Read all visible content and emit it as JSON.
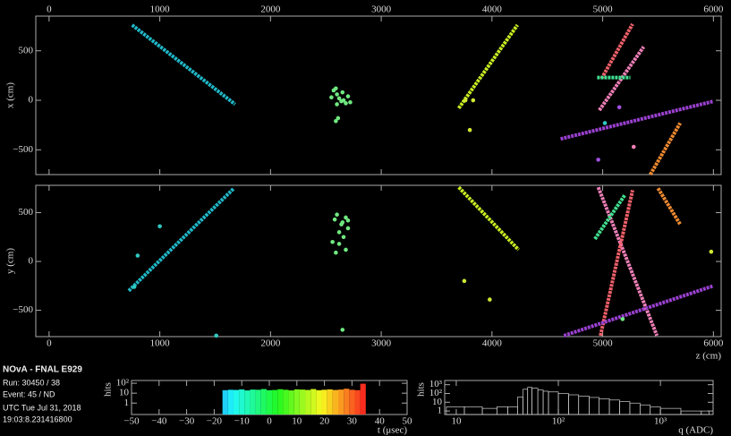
{
  "chart_data": [
    {
      "type": "event-view",
      "ylabel": "x (cm)",
      "xlim": [
        -120,
        6070
      ],
      "ylim": [
        -750,
        850
      ],
      "xticks": [
        0,
        1000,
        2000,
        3000,
        4000,
        5000,
        6000
      ],
      "yticks": [
        {
          "value": -500,
          "label": "−500"
        },
        0,
        500
      ],
      "tracks": [
        {
          "color": "#1fb8c8",
          "x": [
            750,
            1680
          ],
          "values": [
            760,
            -40
          ]
        },
        {
          "color": "#c8ee22",
          "x": [
            3700,
            4230
          ],
          "values": [
            -80,
            760
          ]
        },
        {
          "color": "#f0606a",
          "x": [
            4990,
            5270
          ],
          "values": [
            220,
            770
          ]
        },
        {
          "color": "#f080b8",
          "x": [
            4970,
            5370
          ],
          "values": [
            -100,
            540
          ]
        },
        {
          "color": "#40e090",
          "x": [
            4950,
            5250
          ],
          "values": [
            230,
            230
          ]
        },
        {
          "color": "#9a40d0",
          "x": [
            4620,
            6000
          ],
          "values": [
            -390,
            -10
          ]
        },
        {
          "color": "#f08a30",
          "x": [
            5430,
            5700
          ],
          "values": [
            -750,
            -230
          ]
        }
      ],
      "hits": [
        {
          "color": "#70e880",
          "x": [
            2570,
            2600,
            2620,
            2650,
            2680,
            2700,
            2720,
            2600,
            2550,
            2640,
            2590,
            2660,
            2610,
            2590
          ],
          "values": [
            100,
            60,
            20,
            80,
            -30,
            40,
            -20,
            -40,
            30,
            -10,
            120,
            0,
            -180,
            -210
          ]
        },
        {
          "color": "#d0e830",
          "x": [
            3760,
            3830,
            3800
          ],
          "values": [
            0,
            0,
            -300
          ]
        },
        {
          "color": "#a050e0",
          "x": [
            4960,
            5150
          ],
          "values": [
            -600,
            -70
          ]
        },
        {
          "color": "#f080b8",
          "x": [
            5280
          ],
          "values": [
            -470
          ]
        },
        {
          "color": "#30c8c0",
          "x": [
            5020
          ],
          "values": [
            -230
          ]
        }
      ]
    },
    {
      "type": "event-view",
      "ylabel": "y (cm)",
      "xlabel": "z (cm)",
      "xlim": [
        -120,
        6070
      ],
      "ylim": [
        -770,
        780
      ],
      "xticks": [
        0,
        1000,
        2000,
        3000,
        4000,
        5000,
        6000
      ],
      "yticks": [
        {
          "value": -500,
          "label": "−500"
        },
        0,
        500
      ],
      "tracks": [
        {
          "color": "#1fb8c8",
          "x": [
            720,
            1670
          ],
          "values": [
            -300,
            750
          ]
        },
        {
          "color": "#c8ee22",
          "x": [
            3700,
            4240
          ],
          "values": [
            760,
            120
          ]
        },
        {
          "color": "#f080b8",
          "x": [
            4960,
            5490
          ],
          "values": [
            760,
            -760
          ]
        },
        {
          "color": "#f0606a",
          "x": [
            4980,
            5270
          ],
          "values": [
            -760,
            730
          ]
        },
        {
          "color": "#40e090",
          "x": [
            4930,
            5200
          ],
          "values": [
            230,
            680
          ]
        },
        {
          "color": "#f08a30",
          "x": [
            5500,
            5700
          ],
          "values": [
            750,
            380
          ]
        },
        {
          "color": "#9a40d0",
          "x": [
            4650,
            6000
          ],
          "values": [
            -760,
            -250
          ]
        }
      ],
      "hits": [
        {
          "color": "#70e880",
          "x": [
            2580,
            2600,
            2640,
            2680,
            2620,
            2660,
            2700,
            2560,
            2620,
            2680,
            2590,
            2650,
            2700,
            2650,
            5180
          ],
          "values": [
            430,
            480,
            380,
            450,
            300,
            250,
            340,
            200,
            180,
            120,
            90,
            400,
            420,
            -700,
            -590
          ]
        },
        {
          "color": "#30c8c0",
          "x": [
            1000,
            800,
            770,
            1510
          ],
          "values": [
            360,
            60,
            -260,
            -760
          ]
        },
        {
          "color": "#d0e830",
          "x": [
            3750,
            3980,
            5980
          ],
          "values": [
            -200,
            -390,
            100
          ]
        }
      ]
    },
    {
      "type": "time-histogram",
      "xlabel": "t (μsec)",
      "ylabel": "hits",
      "ylog": true,
      "xlim": [
        -50,
        50
      ],
      "ylim": [
        0.07,
        190
      ],
      "xticks": [
        {
          "value": -50,
          "label": "−50"
        },
        {
          "value": -40,
          "label": "−40"
        },
        {
          "value": -30,
          "label": "−30"
        },
        {
          "value": -20,
          "label": "−20"
        },
        {
          "value": -10,
          "label": "−10"
        },
        0,
        10,
        20,
        30,
        40,
        50
      ],
      "yticks": [
        1,
        10,
        {
          "value": 100,
          "label": "10²"
        }
      ],
      "bins": [
        -17,
        -15,
        -13,
        -11,
        -9,
        -7,
        -5,
        -3,
        -1,
        1,
        3,
        5,
        7,
        9,
        11,
        13,
        15,
        17,
        19,
        21,
        23,
        25,
        27,
        29,
        31,
        33,
        35
      ],
      "counts": [
        20,
        22,
        21,
        24,
        19,
        23,
        22,
        26,
        20,
        21,
        25,
        22,
        19,
        24,
        23,
        21,
        26,
        20,
        22,
        24,
        21,
        23,
        28,
        22,
        20,
        90
      ]
    },
    {
      "type": "charge-histogram",
      "xlabel": "q (ADC)",
      "ylabel": "hits",
      "xlog": true,
      "ylog": true,
      "xlim": [
        7.7,
        3280
      ],
      "ylim": [
        0.4,
        3000
      ],
      "xticks": [
        10,
        {
          "value": 100,
          "label": "10²"
        },
        {
          "value": 1000,
          "label": "10³"
        }
      ],
      "yticks": [
        1,
        10,
        {
          "value": 100,
          "label": "10²"
        },
        {
          "value": 1000,
          "label": "10³"
        }
      ],
      "bins": [
        8,
        12,
        18,
        25,
        32,
        40,
        45,
        50,
        55,
        63,
        71,
        80,
        100,
        126,
        158,
        200,
        251,
        316,
        398,
        501,
        631,
        794,
        1000,
        1585,
        2512,
        3000
      ],
      "counts": [
        3,
        3,
        2,
        3,
        3,
        40,
        300,
        500,
        400,
        250,
        180,
        150,
        100,
        70,
        50,
        35,
        25,
        18,
        12,
        8,
        5,
        3,
        2,
        1,
        1
      ]
    }
  ],
  "info": {
    "title": "NOvA - FNAL E929",
    "run": "Run:   30450 / 38",
    "event": "Event: 45 / ND",
    "date": "UTC Tue Jul 31, 2018",
    "time": "19:03:8.231416800"
  }
}
